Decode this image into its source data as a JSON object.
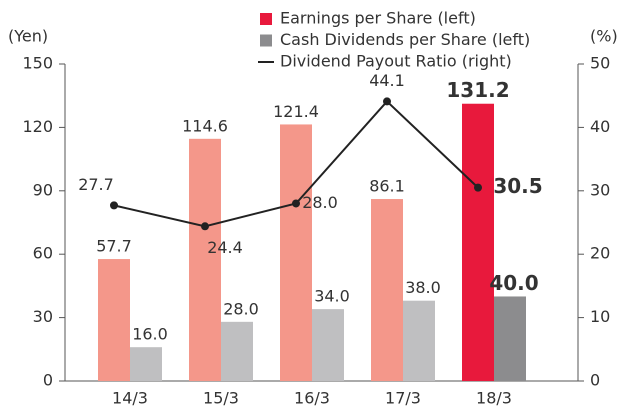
{
  "chart_data": {
    "type": "bar_line",
    "y_label": "(Yen)",
    "y2_label": "(%)",
    "categories": [
      "14/3",
      "15/3",
      "16/3",
      "17/3",
      "18/3"
    ],
    "series": [
      {
        "name": "Earnings per Share (left)",
        "color": "#e8193c",
        "colors": [
          "#f4978a",
          "#f4978a",
          "#f4978a",
          "#f4978a",
          "#e8193c"
        ],
        "values": [
          57.7,
          114.6,
          121.4,
          86.1,
          131.2
        ],
        "value_labels": [
          "57.7",
          "114.6",
          "121.4",
          "86.1",
          "131.2"
        ]
      },
      {
        "name": "Cash Dividends per Share (left)",
        "color": "#8c8c8e",
        "colors": [
          "#bfbfc1",
          "#bfbfc1",
          "#bfbfc1",
          "#bfbfc1",
          "#8c8c8e"
        ],
        "values": [
          16,
          28,
          34,
          38,
          40
        ],
        "value_labels": [
          "16.0",
          "28.0",
          "34.0",
          "38.0",
          "40.0"
        ]
      },
      {
        "name": "Dividend Payout Ratio (right)",
        "color": "#222222",
        "axis": "y2",
        "values": [
          27.7,
          24.4,
          28,
          44.1,
          30.5
        ],
        "value_labels": [
          "27.7",
          "24.4",
          "28.0",
          "44.1",
          "30.5"
        ]
      }
    ],
    "ylim": [
      0,
      150
    ],
    "yticks": [
      0,
      30,
      60,
      90,
      120,
      150
    ],
    "y2lim": [
      0,
      50
    ],
    "y2ticks": [
      0,
      10,
      20,
      30,
      40,
      50
    ]
  }
}
